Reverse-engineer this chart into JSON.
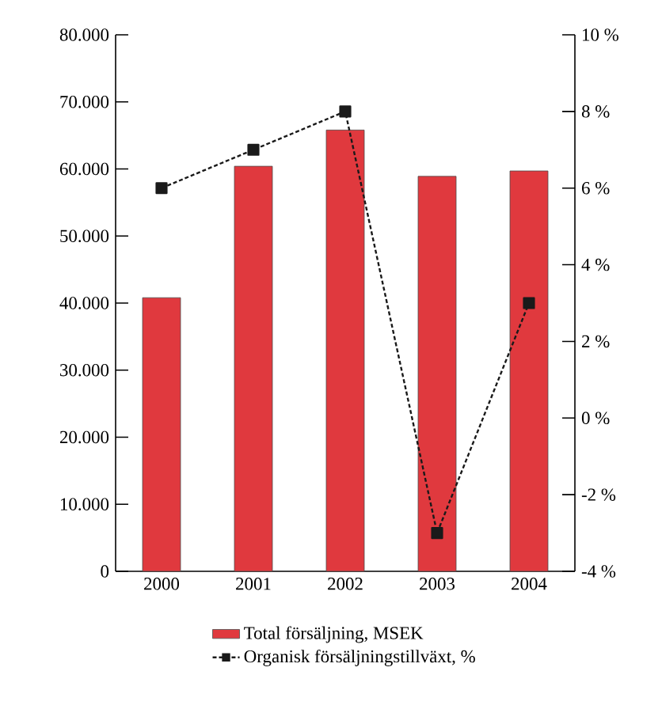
{
  "chart_data": {
    "type": "bar",
    "categories": [
      "2000",
      "2001",
      "2002",
      "2003",
      "2004"
    ],
    "series": [
      {
        "name": "Total försäljning, MSEK",
        "color": "#e0393e",
        "values": [
          40800,
          60400,
          65800,
          58900,
          59700
        ]
      },
      {
        "name": "Organisk försäljningstillväxt, %",
        "type": "line",
        "axis": "y2",
        "color": "#1a1a1a",
        "marker": "square",
        "line_style": "dashed",
        "values": [
          6,
          7,
          8,
          -3,
          3
        ]
      }
    ],
    "ylim": [
      0,
      80000
    ],
    "yticks": [
      {
        "value": 0,
        "label": "0"
      },
      {
        "value": 10000,
        "label": "10.000"
      },
      {
        "value": 20000,
        "label": "20.000"
      },
      {
        "value": 30000,
        "label": "30.000"
      },
      {
        "value": 40000,
        "label": "40.000"
      },
      {
        "value": 50000,
        "label": "50.000"
      },
      {
        "value": 60000,
        "label": "60.000"
      },
      {
        "value": 70000,
        "label": "70.000"
      },
      {
        "value": 80000,
        "label": "80.000"
      }
    ],
    "y2lim": [
      -4,
      10
    ],
    "y2ticks": [
      {
        "value": -4,
        "label": "-4 %"
      },
      {
        "value": -2,
        "label": "-2 %"
      },
      {
        "value": 0,
        "label": "0 %"
      },
      {
        "value": 2,
        "label": "2 %"
      },
      {
        "value": 4,
        "label": "4 %"
      },
      {
        "value": 6,
        "label": "6 %"
      },
      {
        "value": 8,
        "label": "8 %"
      },
      {
        "value": 10,
        "label": "10 %"
      }
    ],
    "grid": false,
    "legend": "bottom"
  }
}
